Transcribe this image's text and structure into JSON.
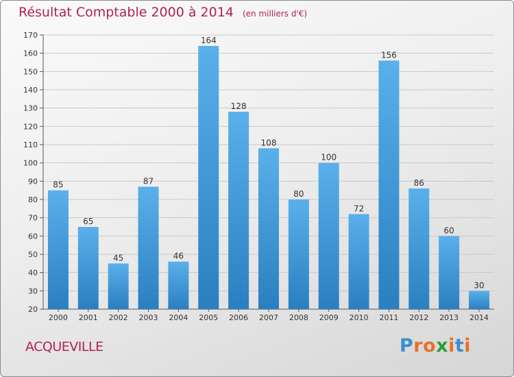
{
  "header": {
    "title": "Résultat Comptable 2000 à 2014",
    "subtitle": "(en milliers d'€)"
  },
  "footer": {
    "commune": "ACQUEVILLE",
    "logo": "Proxiti"
  },
  "colors": {
    "title": "#b0244e",
    "bar_top": "#5ab0ea",
    "bar_bottom": "#2a7fc0",
    "logo_letters": [
      "#3a8fd0",
      "#e8702a",
      "#e8702a",
      "#2a9d3a",
      "#e8702a",
      "#3a8fd0",
      "#e8702a"
    ]
  },
  "chart_data": {
    "type": "bar",
    "categories": [
      "2000",
      "2001",
      "2002",
      "2003",
      "2004",
      "2005",
      "2006",
      "2007",
      "2008",
      "2009",
      "2010",
      "2011",
      "2012",
      "2013",
      "2014"
    ],
    "values": [
      85,
      65,
      45,
      87,
      46,
      164,
      128,
      108,
      80,
      100,
      72,
      156,
      86,
      60,
      30
    ],
    "title": "Résultat Comptable 2000 à 2014",
    "subtitle": "(en milliers d'€)",
    "xlabel": "",
    "ylabel": "",
    "ylim": [
      20,
      170
    ],
    "yticks": [
      20,
      30,
      40,
      50,
      60,
      70,
      80,
      90,
      100,
      110,
      120,
      130,
      140,
      150,
      160,
      170
    ],
    "grid": true,
    "data_labels": true
  }
}
